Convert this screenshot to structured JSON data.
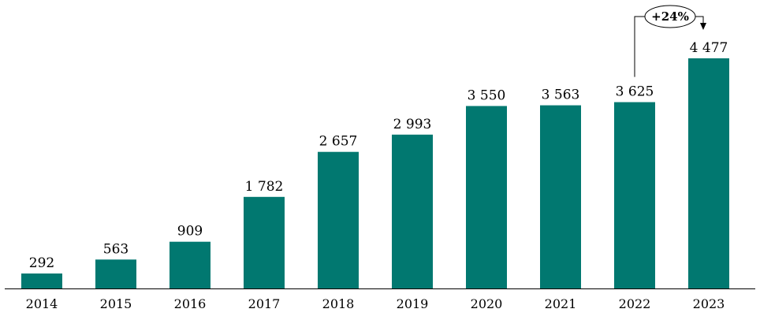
{
  "chart_data": {
    "type": "bar",
    "categories": [
      "2014",
      "2015",
      "2016",
      "2017",
      "2018",
      "2019",
      "2020",
      "2021",
      "2022",
      "2023"
    ],
    "values": [
      292,
      563,
      909,
      1782,
      2657,
      2993,
      3550,
      3563,
      3625,
      4477
    ],
    "value_labels": [
      "292",
      "563",
      "909",
      "1 782",
      "2 657",
      "2 993",
      "3 550",
      "3 563",
      "3 625",
      "4 477"
    ],
    "title": "",
    "xlabel": "",
    "ylabel": "",
    "ylim": [
      0,
      4477
    ],
    "grid": false,
    "bar_color": "#017870",
    "annotations": [
      {
        "text": "+24%",
        "from": "2022",
        "to": "2023"
      }
    ]
  }
}
